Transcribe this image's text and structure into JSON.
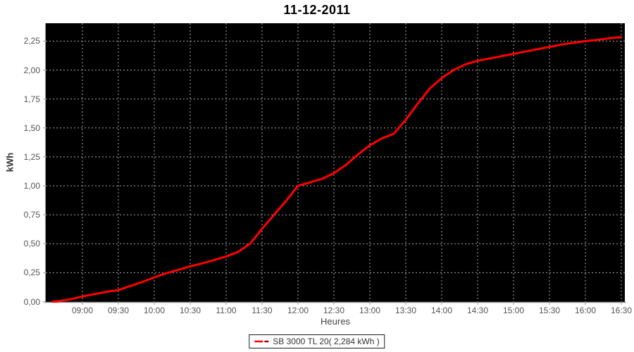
{
  "title": "11-12-2011",
  "y_axis": {
    "label": "kWh",
    "ticks": [
      {
        "label": "0,00",
        "value": 0
      },
      {
        "label": "0,25",
        "value": 0.25
      },
      {
        "label": "0,50",
        "value": 0.5
      },
      {
        "label": "0,75",
        "value": 0.75
      },
      {
        "label": "1,00",
        "value": 1.0
      },
      {
        "label": "1,25",
        "value": 1.25
      },
      {
        "label": "1,50",
        "value": 1.5
      },
      {
        "label": "1,75",
        "value": 1.75
      },
      {
        "label": "2,00",
        "value": 2.0
      },
      {
        "label": "2,25",
        "value": 2.25
      }
    ]
  },
  "x_axis": {
    "label": "Heures",
    "ticks": [
      "09:00",
      "09:30",
      "10:00",
      "10:30",
      "11:00",
      "11:30",
      "12:00",
      "12:30",
      "13:00",
      "13:30",
      "14:00",
      "14:30",
      "15:00",
      "15:30",
      "16:00",
      "16:30"
    ]
  },
  "legend": {
    "label": "SB 3000 TL 20( 2,284 kWh )",
    "marker_color": "#ff0000",
    "marker_color_dark": "#b40000"
  },
  "colors": {
    "plot_background": "#000000",
    "grid": "#a8a8a8",
    "axis": "#9e9e9e",
    "series_line": "#ff0000",
    "tick_text": "#545454",
    "title_text": "#000000"
  },
  "chart_data": {
    "type": "line",
    "title": "11-12-2011",
    "xlabel": "Heures",
    "ylabel": "kWh",
    "ylim": [
      0,
      2.42
    ],
    "x_tick_labels": [
      "09:00",
      "09:30",
      "10:00",
      "10:30",
      "11:00",
      "11:30",
      "12:00",
      "12:30",
      "13:00",
      "13:30",
      "14:00",
      "14:30",
      "15:00",
      "15:30",
      "16:00",
      "16:30"
    ],
    "y_tick_values": [
      0,
      0.25,
      0.5,
      0.75,
      1.0,
      1.25,
      1.5,
      1.75,
      2.0,
      2.25
    ],
    "grid": true,
    "plot_background": "black",
    "legend_position": "bottom",
    "series": [
      {
        "name": "SB 3000 TL 20( 2,284 kWh )",
        "color": "#ff0000",
        "final_total": "2,284 kWh",
        "x": [
          "08:35",
          "08:40",
          "08:50",
          "09:00",
          "09:10",
          "09:20",
          "09:30",
          "09:40",
          "09:50",
          "10:00",
          "10:10",
          "10:20",
          "10:30",
          "10:40",
          "10:50",
          "11:00",
          "11:10",
          "11:20",
          "11:30",
          "11:40",
          "11:50",
          "12:00",
          "12:10",
          "12:20",
          "12:30",
          "12:40",
          "12:50",
          "13:00",
          "13:10",
          "13:20",
          "13:30",
          "13:40",
          "13:50",
          "14:00",
          "14:10",
          "14:20",
          "14:30",
          "14:40",
          "14:50",
          "15:00",
          "15:10",
          "15:20",
          "15:30",
          "15:40",
          "15:50",
          "16:00",
          "16:10",
          "16:20",
          "16:30"
        ],
        "y": [
          0.0,
          0.005,
          0.02,
          0.045,
          0.065,
          0.085,
          0.1,
          0.135,
          0.17,
          0.21,
          0.245,
          0.275,
          0.305,
          0.33,
          0.36,
          0.39,
          0.43,
          0.5,
          0.63,
          0.75,
          0.87,
          1.0,
          1.03,
          1.06,
          1.11,
          1.18,
          1.27,
          1.35,
          1.41,
          1.45,
          1.57,
          1.71,
          1.84,
          1.93,
          2.0,
          2.05,
          2.08,
          2.1,
          2.12,
          2.14,
          2.16,
          2.18,
          2.2,
          2.22,
          2.235,
          2.25,
          2.26,
          2.275,
          2.284
        ]
      }
    ]
  }
}
